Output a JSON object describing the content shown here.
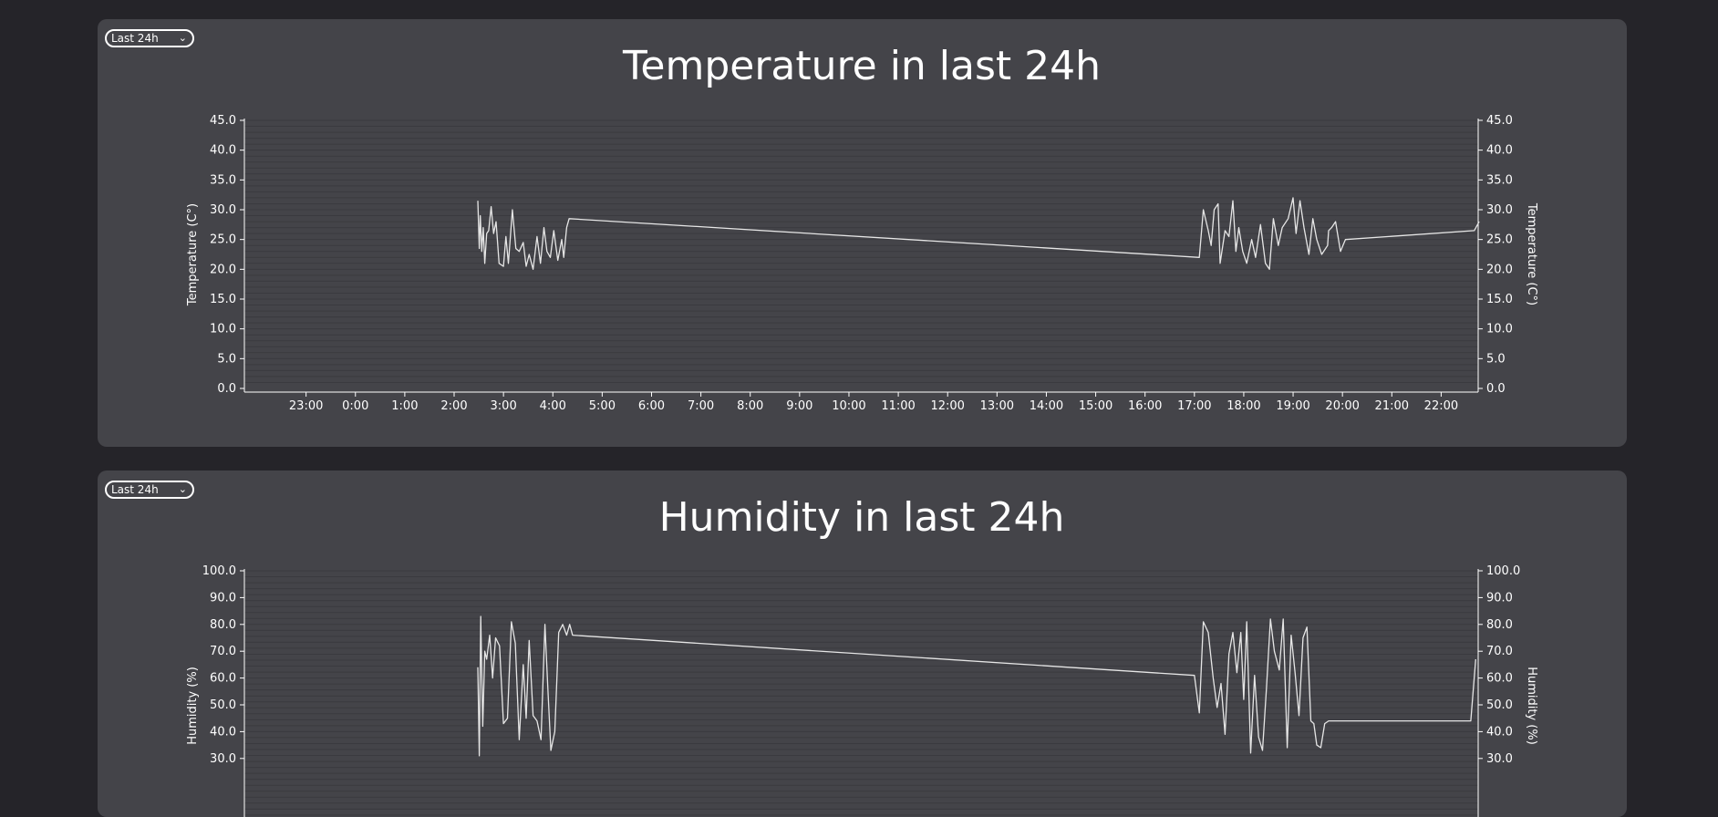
{
  "colors": {
    "background": "#252429",
    "panel": "#444449",
    "line": "#e6e6e6",
    "grid": "#3a3a3f",
    "text": "#ffffff"
  },
  "panels": [
    {
      "range_select": {
        "value": "Last 24h",
        "icon": "chevron-down-icon"
      }
    },
    {
      "range_select": {
        "value": "Last 24h",
        "icon": "chevron-down-icon"
      }
    }
  ],
  "chart_data": [
    {
      "type": "line",
      "title": "Temperature in last 24h",
      "ylabel": "Temperature (C°)",
      "y2label": "Temperature (C°)",
      "ylim": [
        0,
        45
      ],
      "yticks": [
        "0.0",
        "5.0",
        "10.0",
        "15.0",
        "20.0",
        "25.0",
        "30.0",
        "35.0",
        "40.0",
        "45.0"
      ],
      "xticks": [
        "23:00",
        "0:00",
        "1:00",
        "2:00",
        "3:00",
        "4:00",
        "5:00",
        "6:00",
        "7:00",
        "8:00",
        "9:00",
        "10:00",
        "11:00",
        "12:00",
        "13:00",
        "14:00",
        "15:00",
        "16:00",
        "17:00",
        "18:00",
        "19:00",
        "20:00",
        "21:00",
        "22:00"
      ],
      "x": [
        3.48,
        3.51,
        3.53,
        3.56,
        3.59,
        3.62,
        3.66,
        3.7,
        3.75,
        3.8,
        3.85,
        3.91,
        4.0,
        4.05,
        4.1,
        4.18,
        4.25,
        4.32,
        4.4,
        4.46,
        4.52,
        4.6,
        4.68,
        4.75,
        4.82,
        4.88,
        4.95,
        5.02,
        5.1,
        5.18,
        5.22,
        5.28,
        5.33,
        18.1,
        18.18,
        18.28,
        18.34,
        18.4,
        18.48,
        18.52,
        18.62,
        18.7,
        18.78,
        18.84,
        18.9,
        18.98,
        19.06,
        19.16,
        19.24,
        19.34,
        19.44,
        19.52,
        19.6,
        19.7,
        19.78,
        19.9,
        20.0,
        20.06,
        20.14,
        20.22,
        20.32,
        20.4,
        20.48,
        20.58,
        20.7,
        20.72,
        20.78,
        20.86,
        20.96,
        21.06,
        23.67,
        23.77
      ],
      "y": [
        31.5,
        23.5,
        29.0,
        23.0,
        27.0,
        21.0,
        26.0,
        26.5,
        30.5,
        26.0,
        28.0,
        21.0,
        20.5,
        25.5,
        21.0,
        30.0,
        23.5,
        23.0,
        24.5,
        20.5,
        22.5,
        20.0,
        25.5,
        21.0,
        27.0,
        23.0,
        22.0,
        26.5,
        21.5,
        25.0,
        22.0,
        27.0,
        28.5,
        22.0,
        30.0,
        26.5,
        24.0,
        30.0,
        31.0,
        21.0,
        26.5,
        25.5,
        31.5,
        23.0,
        27.0,
        23.0,
        21.0,
        25.0,
        22.0,
        27.5,
        21.0,
        20.0,
        28.5,
        24.0,
        27.0,
        28.5,
        32.0,
        26.0,
        31.5,
        27.0,
        22.5,
        28.5,
        25.0,
        22.5,
        24.0,
        26.5,
        27.0,
        28.0,
        23.0,
        25.0,
        26.5,
        28.0
      ]
    },
    {
      "type": "line",
      "title": "Humidity in last 24h",
      "ylabel": "Humidity (%)",
      "y2label": "Humidity (%)",
      "ylim": [
        0,
        100
      ],
      "yticks": [
        "30.0",
        "40.0",
        "50.0",
        "60.0",
        "70.0",
        "80.0",
        "90.0",
        "100.0"
      ],
      "xticks": [],
      "x": [
        3.48,
        3.51,
        3.54,
        3.58,
        3.62,
        3.66,
        3.72,
        3.78,
        3.84,
        3.92,
        4.0,
        4.08,
        4.16,
        4.24,
        4.32,
        4.4,
        4.46,
        4.52,
        4.6,
        4.68,
        4.76,
        4.84,
        4.9,
        4.96,
        5.04,
        5.12,
        5.2,
        5.28,
        5.34,
        5.4,
        18.0,
        18.1,
        18.18,
        18.28,
        18.38,
        18.46,
        18.54,
        18.62,
        18.7,
        18.78,
        18.86,
        18.94,
        19.0,
        19.06,
        19.14,
        19.22,
        19.3,
        19.38,
        19.46,
        19.54,
        19.62,
        19.72,
        19.8,
        19.88,
        19.96,
        20.04,
        20.12,
        20.2,
        20.28,
        20.36,
        20.42,
        20.48,
        20.56,
        20.64,
        20.72,
        20.8,
        23.6,
        23.7
      ],
      "y": [
        64,
        31,
        83,
        42,
        70,
        67,
        76,
        60,
        75,
        72,
        43,
        45,
        81,
        73,
        37,
        65,
        45,
        74,
        46,
        44,
        37,
        80,
        56,
        33,
        40,
        77,
        80,
        76,
        80,
        76,
        61,
        47,
        81,
        77,
        60,
        49,
        58,
        39,
        69,
        77,
        62,
        77,
        52,
        81,
        32,
        61,
        38,
        33,
        56,
        82,
        70,
        63,
        82,
        34,
        76,
        62,
        46,
        75,
        79,
        44,
        43,
        35,
        34,
        43,
        44,
        44,
        44,
        67
      ]
    }
  ]
}
